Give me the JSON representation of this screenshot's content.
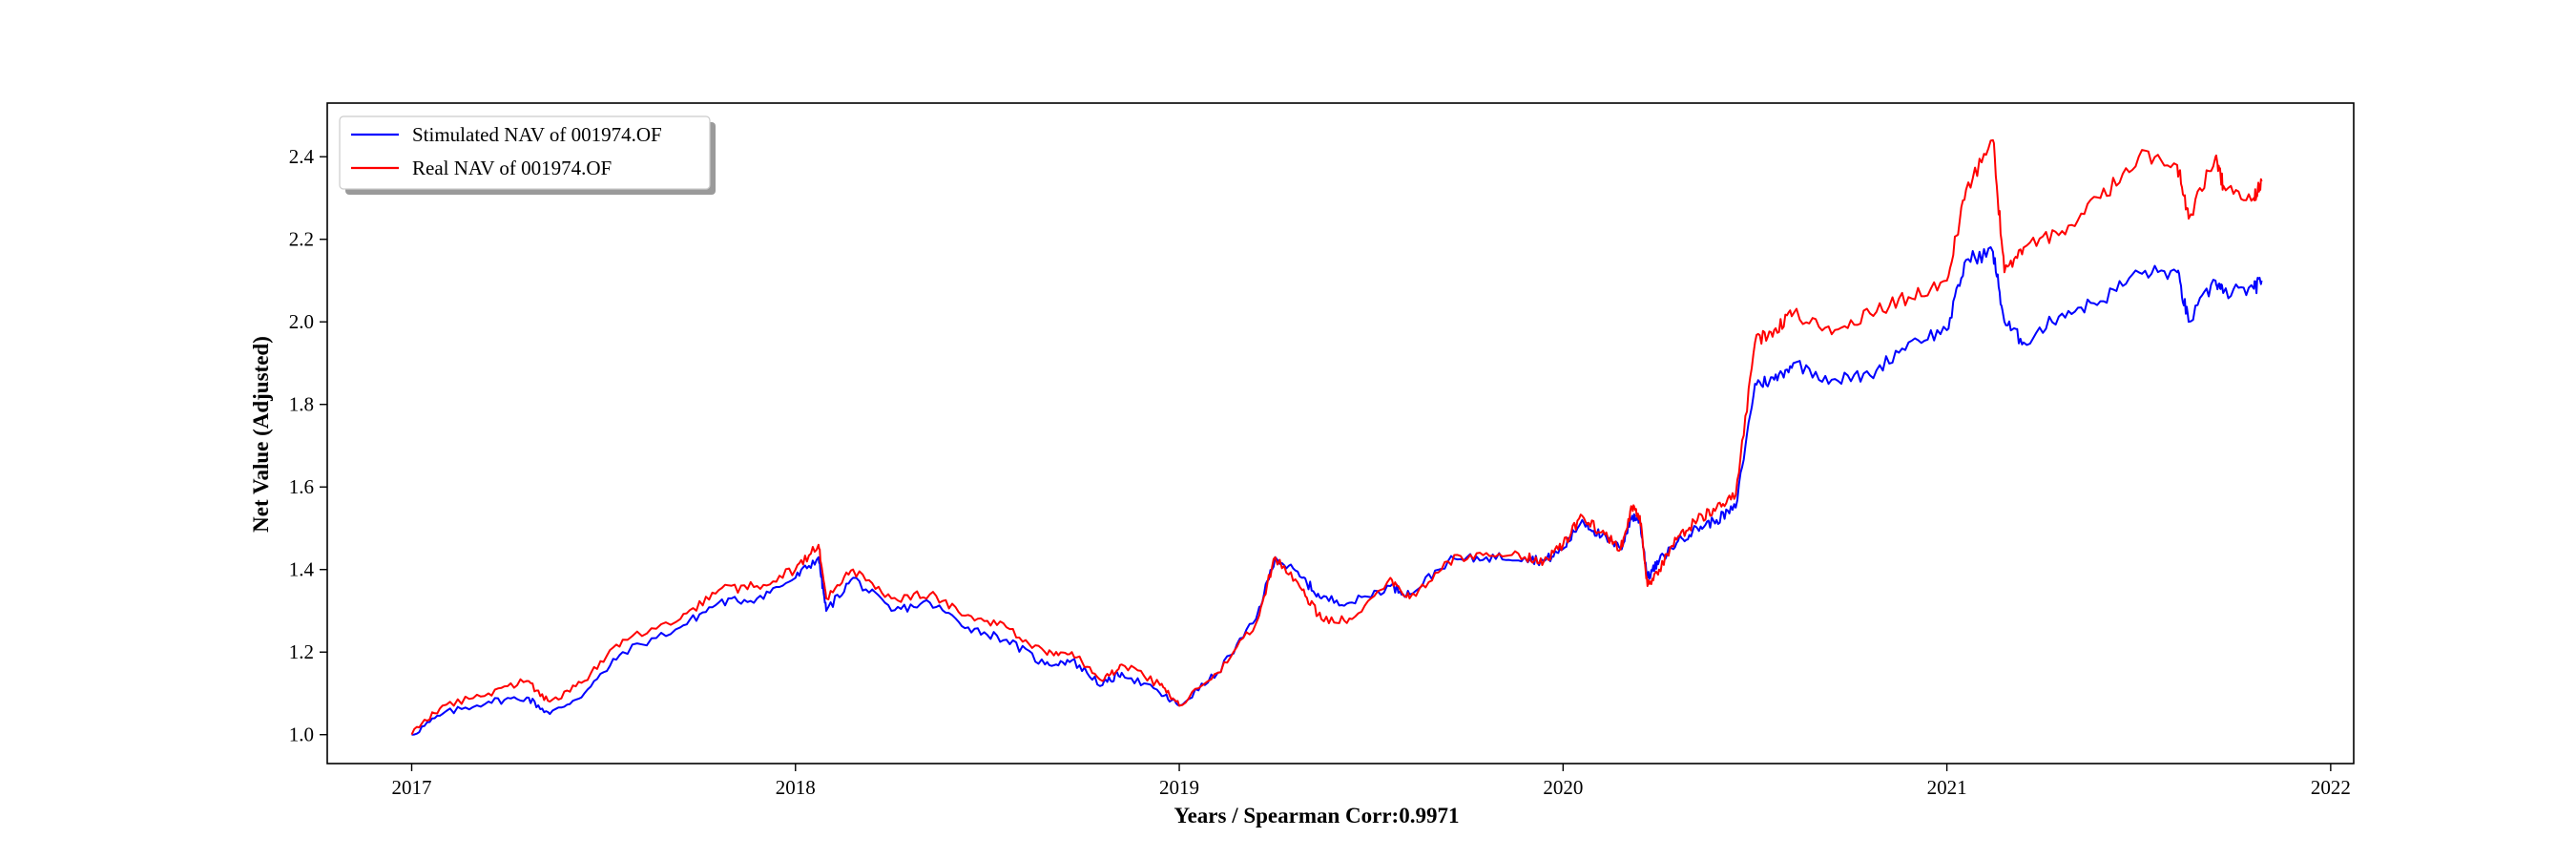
{
  "colors": {
    "stimulated": "#0000ff",
    "real": "#ff0000",
    "axes": "#000000",
    "background": "#ffffff"
  },
  "chart_data": {
    "type": "line",
    "title": "",
    "xlabel": "Years / Spearman Corr:0.9971",
    "ylabel": "Net Value (Adjusted)",
    "xlim": [
      2016.78,
      2022.06
    ],
    "ylim": [
      0.93,
      2.53
    ],
    "xticks": [
      2017,
      2018,
      2019,
      2020,
      2021,
      2022
    ],
    "yticks": [
      1.0,
      1.2,
      1.4,
      1.6,
      1.8,
      2.0,
      2.2,
      2.4
    ],
    "grid": false,
    "legend_position": "top-left",
    "series": [
      {
        "name": "Stimulated NAV of 001974.OF",
        "color": "#0000ff",
        "x": [
          2017.0,
          2017.08,
          2017.2,
          2017.3,
          2017.36,
          2017.45,
          2017.55,
          2017.7,
          2017.8,
          2017.9,
          2018.0,
          2018.06,
          2018.08,
          2018.15,
          2018.25,
          2018.35,
          2018.45,
          2018.55,
          2018.65,
          2018.72,
          2018.8,
          2018.85,
          2018.95,
          2019.0,
          2019.1,
          2019.2,
          2019.25,
          2019.32,
          2019.37,
          2019.45,
          2019.55,
          2019.6,
          2019.7,
          2019.8,
          2019.9,
          2019.95,
          2020.0,
          2020.05,
          2020.1,
          2020.15,
          2020.18,
          2020.2,
          2020.22,
          2020.25,
          2020.3,
          2020.35,
          2020.4,
          2020.45,
          2020.5,
          2020.55,
          2020.6,
          2020.7,
          2020.8,
          2020.9,
          2021.0,
          2021.05,
          2021.12,
          2021.15,
          2021.2,
          2021.3,
          2021.4,
          2021.5,
          2021.6,
          2021.63,
          2021.7,
          2021.72,
          2021.8,
          2021.82
        ],
        "y": [
          1.0,
          1.05,
          1.08,
          1.09,
          1.05,
          1.1,
          1.2,
          1.26,
          1.32,
          1.33,
          1.38,
          1.43,
          1.3,
          1.38,
          1.3,
          1.32,
          1.26,
          1.23,
          1.17,
          1.18,
          1.12,
          1.15,
          1.1,
          1.07,
          1.15,
          1.28,
          1.43,
          1.38,
          1.33,
          1.32,
          1.36,
          1.34,
          1.42,
          1.43,
          1.43,
          1.42,
          1.45,
          1.52,
          1.48,
          1.45,
          1.53,
          1.52,
          1.38,
          1.42,
          1.47,
          1.5,
          1.52,
          1.55,
          1.85,
          1.86,
          1.9,
          1.86,
          1.87,
          1.95,
          1.98,
          2.15,
          2.17,
          2.0,
          1.95,
          2.02,
          2.05,
          2.12,
          2.12,
          2.0,
          2.1,
          2.07,
          2.08,
          2.1
        ]
      },
      {
        "name": "Real NAV of 001974.OF",
        "color": "#ff0000",
        "x": [
          2017.0,
          2017.08,
          2017.2,
          2017.3,
          2017.36,
          2017.45,
          2017.55,
          2017.7,
          2017.8,
          2017.9,
          2018.0,
          2018.06,
          2018.08,
          2018.15,
          2018.25,
          2018.35,
          2018.45,
          2018.55,
          2018.65,
          2018.72,
          2018.8,
          2018.85,
          2018.95,
          2019.0,
          2019.1,
          2019.2,
          2019.25,
          2019.32,
          2019.37,
          2019.45,
          2019.55,
          2019.6,
          2019.7,
          2019.8,
          2019.9,
          2019.95,
          2020.0,
          2020.05,
          2020.1,
          2020.15,
          2020.18,
          2020.2,
          2020.22,
          2020.25,
          2020.3,
          2020.35,
          2020.4,
          2020.45,
          2020.5,
          2020.55,
          2020.6,
          2020.7,
          2020.8,
          2020.9,
          2021.0,
          2021.05,
          2021.12,
          2021.15,
          2021.2,
          2021.3,
          2021.4,
          2021.5,
          2021.6,
          2021.63,
          2021.7,
          2021.72,
          2021.8,
          2021.82
        ],
        "y": [
          1.0,
          1.07,
          1.1,
          1.13,
          1.08,
          1.13,
          1.23,
          1.28,
          1.35,
          1.36,
          1.4,
          1.46,
          1.33,
          1.4,
          1.33,
          1.34,
          1.29,
          1.26,
          1.2,
          1.2,
          1.13,
          1.17,
          1.12,
          1.07,
          1.15,
          1.27,
          1.43,
          1.35,
          1.28,
          1.28,
          1.38,
          1.33,
          1.42,
          1.44,
          1.43,
          1.42,
          1.46,
          1.53,
          1.49,
          1.45,
          1.55,
          1.53,
          1.36,
          1.4,
          1.48,
          1.52,
          1.55,
          1.58,
          1.95,
          1.98,
          2.02,
          1.97,
          2.02,
          2.06,
          2.1,
          2.32,
          2.44,
          2.12,
          2.18,
          2.22,
          2.3,
          2.4,
          2.38,
          2.25,
          2.4,
          2.33,
          2.3,
          2.34
        ]
      }
    ]
  }
}
